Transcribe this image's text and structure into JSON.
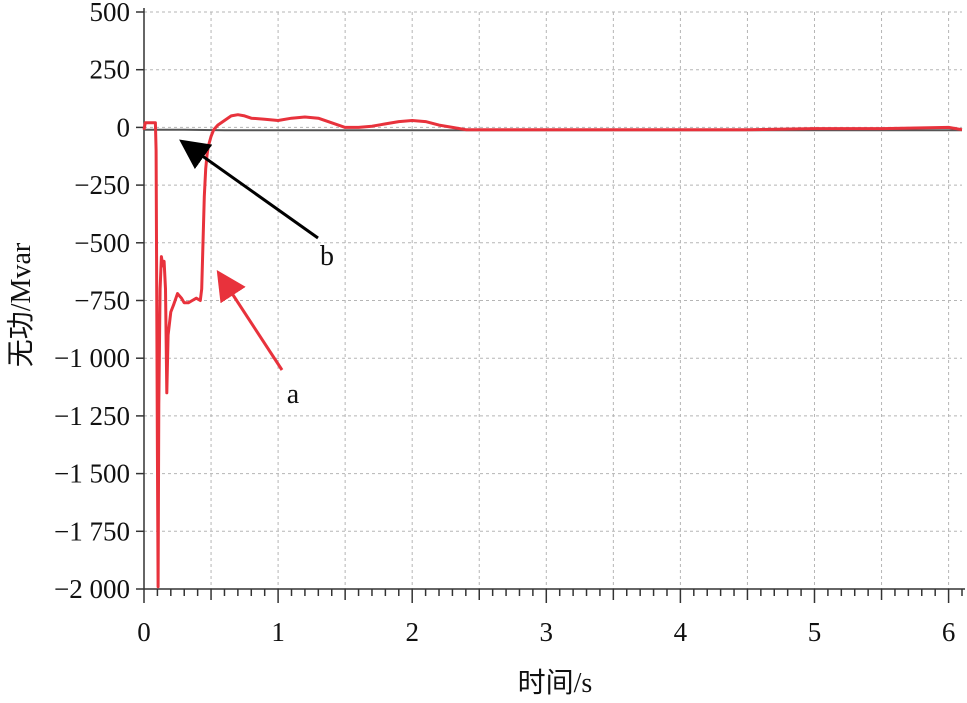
{
  "chart_data": {
    "type": "line",
    "title": "",
    "xlabel": "时间/s",
    "ylabel": "无功/Mvar",
    "xlim": [
      0,
      6.1
    ],
    "ylim": [
      -2000,
      500
    ],
    "xticks": [
      0,
      1,
      2,
      3,
      4,
      5,
      6
    ],
    "xtick_labels": [
      "0",
      "1",
      "2",
      "3",
      "4",
      "5",
      "6"
    ],
    "yticks": [
      500,
      250,
      0,
      -250,
      -500,
      -750,
      -1000,
      -1250,
      -1500,
      -1750,
      -2000
    ],
    "ytick_labels": [
      "500",
      "250",
      "0",
      "−250",
      "−500",
      "−750",
      "−1 000",
      "−1 250",
      "−1 500",
      "−1 750",
      "−2 000"
    ],
    "grid": true,
    "series": [
      {
        "name": "a",
        "color": "#e8323c",
        "x": [
          0,
          0.01,
          0.08,
          0.085,
          0.09,
          0.1,
          0.105,
          0.11,
          0.12,
          0.13,
          0.14,
          0.15,
          0.16,
          0.17,
          0.18,
          0.2,
          0.22,
          0.25,
          0.28,
          0.3,
          0.33,
          0.36,
          0.39,
          0.42,
          0.43,
          0.44,
          0.45,
          0.46,
          0.47,
          0.48,
          0.5,
          0.52,
          0.55,
          0.6,
          0.65,
          0.7,
          0.75,
          0.8,
          0.9,
          1.0,
          1.1,
          1.2,
          1.3,
          1.4,
          1.5,
          1.6,
          1.7,
          1.8,
          1.9,
          2.0,
          2.1,
          2.2,
          2.3,
          2.4,
          2.5,
          3.0,
          3.5,
          4.0,
          4.5,
          5.0,
          5.5,
          6.0,
          6.1
        ],
        "y": [
          -10,
          20,
          20,
          20,
          -100,
          -1400,
          -1990,
          -1200,
          -700,
          -560,
          -600,
          -580,
          -700,
          -1150,
          -900,
          -800,
          -770,
          -720,
          -740,
          -760,
          -760,
          -750,
          -740,
          -750,
          -700,
          -500,
          -300,
          -180,
          -120,
          -80,
          -40,
          -10,
          10,
          30,
          50,
          55,
          50,
          40,
          35,
          30,
          40,
          45,
          40,
          20,
          0,
          0,
          5,
          15,
          25,
          30,
          25,
          10,
          0,
          -10,
          -10,
          -10,
          -10,
          -10,
          -10,
          -5,
          -5,
          0,
          -10
        ]
      },
      {
        "name": "b",
        "color": "#555555",
        "x": [
          0,
          0.3,
          0.6,
          1.0,
          2.0,
          3.0,
          4.0,
          5.0,
          6.0,
          6.1
        ],
        "y": [
          -10,
          -10,
          -12,
          -12,
          -12,
          -12,
          -12,
          -12,
          -12,
          -12
        ]
      }
    ],
    "annotations": [
      {
        "text": "a",
        "color": "#e8323c"
      },
      {
        "text": "b",
        "color": "#000000"
      }
    ]
  }
}
